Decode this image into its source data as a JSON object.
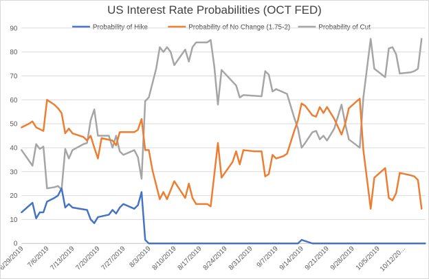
{
  "chart_data": {
    "type": "line",
    "title": "US Interest Rate Probabilities (OCT FED)",
    "xlabel": "",
    "ylabel": "",
    "ylim": [
      0,
      90
    ],
    "y_ticks": [
      0,
      10,
      20,
      30,
      40,
      50,
      60,
      70,
      80,
      90
    ],
    "x_ticks": [
      "6/29/2019",
      "7/6/2019",
      "7/13/2019",
      "7/20/2019",
      "7/27/2019",
      "8/3/2019",
      "8/10/2019",
      "8/17/2019",
      "8/24/2019",
      "8/31/2019",
      "9/7/2019",
      "9/14/2019",
      "9/21/2019",
      "9/28/2019",
      "10/5/2019",
      "10/12/20..."
    ],
    "x_range": [
      "2019-06-29",
      "2019-10-18"
    ],
    "grid": "horizontal",
    "legend_position": "top",
    "series": [
      {
        "name": "Probability of Hike",
        "color": "#4472c4",
        "points": [
          [
            "2019-06-29",
            13
          ],
          [
            "2019-07-02",
            17
          ],
          [
            "2019-07-03",
            10.5
          ],
          [
            "2019-07-04",
            13
          ],
          [
            "2019-07-05",
            13
          ],
          [
            "2019-07-06",
            17.5
          ],
          [
            "2019-07-08",
            19
          ],
          [
            "2019-07-09",
            20
          ],
          [
            "2019-07-10",
            23
          ],
          [
            "2019-07-11",
            15
          ],
          [
            "2019-07-12",
            16.5
          ],
          [
            "2019-07-13",
            15
          ],
          [
            "2019-07-17",
            14
          ],
          [
            "2019-07-18",
            10
          ],
          [
            "2019-07-19",
            8.5
          ],
          [
            "2019-07-20",
            11
          ],
          [
            "2019-07-23",
            12
          ],
          [
            "2019-07-24",
            14
          ],
          [
            "2019-07-25",
            12.5
          ],
          [
            "2019-07-26",
            15
          ],
          [
            "2019-07-27",
            16.5
          ],
          [
            "2019-07-30",
            14.5
          ],
          [
            "2019-07-31",
            16
          ],
          [
            "2019-08-01",
            21.5
          ],
          [
            "2019-08-02",
            1.5
          ],
          [
            "2019-08-03",
            0
          ],
          [
            "2019-09-13",
            0
          ],
          [
            "2019-09-14",
            1.5
          ],
          [
            "2019-09-15",
            1
          ],
          [
            "2019-09-17",
            0
          ],
          [
            "2019-10-18",
            0
          ]
        ]
      },
      {
        "name": "Probability of No Change (1.75-2)",
        "color": "#ed7d31",
        "points": [
          [
            "2019-06-29",
            48.5
          ],
          [
            "2019-07-01",
            50
          ],
          [
            "2019-07-02",
            51
          ],
          [
            "2019-07-03",
            48.5
          ],
          [
            "2019-07-05",
            47
          ],
          [
            "2019-07-06",
            60
          ],
          [
            "2019-07-08",
            58
          ],
          [
            "2019-07-09",
            56.5
          ],
          [
            "2019-07-10",
            54.5
          ],
          [
            "2019-07-11",
            46
          ],
          [
            "2019-07-12",
            48
          ],
          [
            "2019-07-13",
            46
          ],
          [
            "2019-07-16",
            44.5
          ],
          [
            "2019-07-17",
            43
          ],
          [
            "2019-07-18",
            45
          ],
          [
            "2019-07-19",
            40
          ],
          [
            "2019-07-20",
            35.5
          ],
          [
            "2019-07-21",
            44
          ],
          [
            "2019-07-24",
            43
          ],
          [
            "2019-07-25",
            41
          ],
          [
            "2019-07-26",
            46.5
          ],
          [
            "2019-07-30",
            46.5
          ],
          [
            "2019-07-31",
            47.5
          ],
          [
            "2019-08-01",
            52
          ],
          [
            "2019-08-02",
            39
          ],
          [
            "2019-08-03",
            39
          ],
          [
            "2019-08-04",
            30.5
          ],
          [
            "2019-08-06",
            18.5
          ],
          [
            "2019-08-07",
            21.5
          ],
          [
            "2019-08-08",
            18.5
          ],
          [
            "2019-08-10",
            26
          ],
          [
            "2019-08-13",
            19
          ],
          [
            "2019-08-14",
            25
          ],
          [
            "2019-08-15",
            19
          ],
          [
            "2019-08-16",
            16.5
          ],
          [
            "2019-08-19",
            16.5
          ],
          [
            "2019-08-20",
            15.5
          ],
          [
            "2019-08-22",
            42
          ],
          [
            "2019-08-23",
            27.5
          ],
          [
            "2019-08-26",
            34
          ],
          [
            "2019-08-27",
            38.5
          ],
          [
            "2019-08-28",
            33
          ],
          [
            "2019-08-29",
            39
          ],
          [
            "2019-09-01",
            38.5
          ],
          [
            "2019-09-03",
            38.5
          ],
          [
            "2019-09-04",
            28
          ],
          [
            "2019-09-05",
            29
          ],
          [
            "2019-09-06",
            37
          ],
          [
            "2019-09-07",
            35.5
          ],
          [
            "2019-09-09",
            36.5
          ],
          [
            "2019-09-10",
            37.5
          ],
          [
            "2019-09-12",
            47
          ],
          [
            "2019-09-13",
            51.5
          ],
          [
            "2019-09-14",
            58.5
          ],
          [
            "2019-09-15",
            57.5
          ],
          [
            "2019-09-17",
            53.5
          ],
          [
            "2019-09-18",
            53
          ],
          [
            "2019-09-19",
            57
          ],
          [
            "2019-09-20",
            54.5
          ],
          [
            "2019-09-21",
            57
          ],
          [
            "2019-09-23",
            52
          ],
          [
            "2019-09-25",
            45.5
          ],
          [
            "2019-09-26",
            50
          ],
          [
            "2019-09-27",
            56.5
          ],
          [
            "2019-09-30",
            60.5
          ],
          [
            "2019-10-01",
            39
          ],
          [
            "2019-10-03",
            14.5
          ],
          [
            "2019-10-04",
            27.5
          ],
          [
            "2019-10-07",
            31.5
          ],
          [
            "2019-10-08",
            19
          ],
          [
            "2019-10-09",
            18
          ],
          [
            "2019-10-10",
            21
          ],
          [
            "2019-10-11",
            29.5
          ],
          [
            "2019-10-14",
            28.5
          ],
          [
            "2019-10-15",
            28
          ],
          [
            "2019-10-16",
            26.5
          ],
          [
            "2019-10-17",
            14.5
          ]
        ]
      },
      {
        "name": "Probability of Cut",
        "color": "#a5a5a5",
        "points": [
          [
            "2019-06-29",
            39
          ],
          [
            "2019-07-02",
            32.5
          ],
          [
            "2019-07-03",
            41.5
          ],
          [
            "2019-07-04",
            39.5
          ],
          [
            "2019-07-05",
            40.5
          ],
          [
            "2019-07-06",
            23
          ],
          [
            "2019-07-08",
            23.5
          ],
          [
            "2019-07-09",
            24
          ],
          [
            "2019-07-10",
            22.5
          ],
          [
            "2019-07-11",
            39.5
          ],
          [
            "2019-07-12",
            35.5
          ],
          [
            "2019-07-13",
            39
          ],
          [
            "2019-07-16",
            41.5
          ],
          [
            "2019-07-17",
            42
          ],
          [
            "2019-07-18",
            51.5
          ],
          [
            "2019-07-19",
            56
          ],
          [
            "2019-07-20",
            45
          ],
          [
            "2019-07-23",
            45
          ],
          [
            "2019-07-24",
            40
          ],
          [
            "2019-07-25",
            45
          ],
          [
            "2019-07-26",
            38.5
          ],
          [
            "2019-07-27",
            37
          ],
          [
            "2019-07-30",
            39
          ],
          [
            "2019-07-31",
            36
          ],
          [
            "2019-08-01",
            27
          ],
          [
            "2019-08-02",
            59.5
          ],
          [
            "2019-08-03",
            61
          ],
          [
            "2019-08-05",
            73
          ],
          [
            "2019-08-06",
            82
          ],
          [
            "2019-08-07",
            80
          ],
          [
            "2019-08-08",
            82
          ],
          [
            "2019-08-09",
            80
          ],
          [
            "2019-08-10",
            74.5
          ],
          [
            "2019-08-13",
            81
          ],
          [
            "2019-08-14",
            76
          ],
          [
            "2019-08-15",
            82
          ],
          [
            "2019-08-16",
            84
          ],
          [
            "2019-08-19",
            84
          ],
          [
            "2019-08-20",
            85
          ],
          [
            "2019-08-21",
            74
          ],
          [
            "2019-08-22",
            58
          ],
          [
            "2019-08-23",
            72.5
          ],
          [
            "2019-08-27",
            66
          ],
          [
            "2019-08-28",
            61
          ],
          [
            "2019-08-29",
            62
          ],
          [
            "2019-09-03",
            61.5
          ],
          [
            "2019-09-04",
            72
          ],
          [
            "2019-09-05",
            70.5
          ],
          [
            "2019-09-06",
            63.5
          ],
          [
            "2019-09-07",
            64.5
          ],
          [
            "2019-09-10",
            62.5
          ],
          [
            "2019-09-12",
            52.5
          ],
          [
            "2019-09-13",
            48
          ],
          [
            "2019-09-14",
            40
          ],
          [
            "2019-09-15",
            42
          ],
          [
            "2019-09-17",
            46.5
          ],
          [
            "2019-09-18",
            47
          ],
          [
            "2019-09-19",
            43.5
          ],
          [
            "2019-09-20",
            45
          ],
          [
            "2019-09-21",
            43
          ],
          [
            "2019-09-23",
            48
          ],
          [
            "2019-09-25",
            58
          ],
          [
            "2019-09-26",
            50
          ],
          [
            "2019-09-27",
            43.5
          ],
          [
            "2019-09-30",
            40
          ],
          [
            "2019-10-01",
            61
          ],
          [
            "2019-10-03",
            85.5
          ],
          [
            "2019-10-04",
            73
          ],
          [
            "2019-10-07",
            69.5
          ],
          [
            "2019-10-08",
            81.5
          ],
          [
            "2019-10-09",
            82
          ],
          [
            "2019-10-10",
            79
          ],
          [
            "2019-10-11",
            71
          ],
          [
            "2019-10-14",
            71.5
          ],
          [
            "2019-10-15",
            72
          ],
          [
            "2019-10-16",
            73
          ],
          [
            "2019-10-17",
            85.5
          ]
        ]
      }
    ]
  }
}
